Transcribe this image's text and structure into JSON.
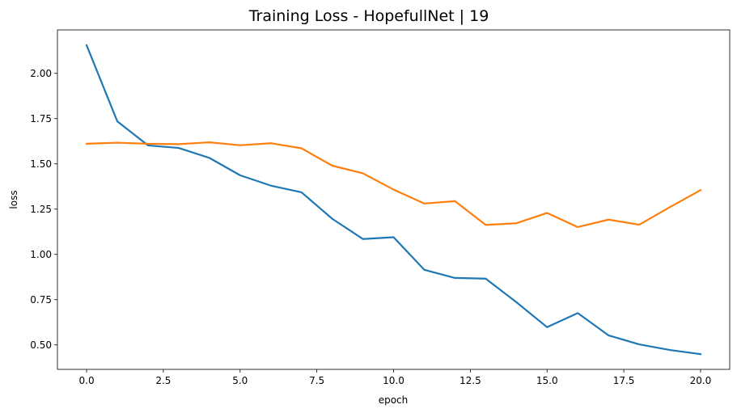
{
  "chart_data": {
    "type": "line",
    "title": "Training Loss - HopefullNet | 19",
    "xlabel": "epoch",
    "ylabel": "loss",
    "xlim": [
      -0.95,
      20.95
    ],
    "ylim": [
      0.365,
      2.24
    ],
    "xticks": [
      0.0,
      2.5,
      5.0,
      7.5,
      10.0,
      12.5,
      15.0,
      17.5,
      20.0
    ],
    "xtick_labels": [
      "0.0",
      "2.5",
      "5.0",
      "7.5",
      "10.0",
      "12.5",
      "15.0",
      "17.5",
      "20.0"
    ],
    "yticks": [
      0.5,
      0.75,
      1.0,
      1.25,
      1.5,
      1.75,
      2.0
    ],
    "ytick_labels": [
      "0.50",
      "0.75",
      "1.00",
      "1.25",
      "1.50",
      "1.75",
      "2.00"
    ],
    "grid": false,
    "legend": false,
    "x": [
      0,
      1,
      2,
      3,
      4,
      5,
      6,
      7,
      8,
      9,
      10,
      11,
      12,
      13,
      14,
      15,
      16,
      17,
      18,
      19,
      20
    ],
    "series": [
      {
        "color": "#1f77b4",
        "values": [
          2.155,
          1.735,
          1.602,
          1.588,
          1.533,
          1.437,
          1.38,
          1.343,
          1.197,
          1.085,
          1.095,
          0.915,
          0.87,
          0.866,
          0.736,
          0.598,
          0.676,
          0.553,
          0.503,
          0.472,
          0.449
        ]
      },
      {
        "color": "#ff7f0e",
        "values": [
          1.611,
          1.617,
          1.611,
          1.609,
          1.619,
          1.603,
          1.614,
          1.586,
          1.49,
          1.448,
          1.358,
          1.281,
          1.294,
          1.163,
          1.172,
          1.229,
          1.151,
          1.192,
          1.164,
          1.261,
          1.355
        ]
      }
    ]
  }
}
